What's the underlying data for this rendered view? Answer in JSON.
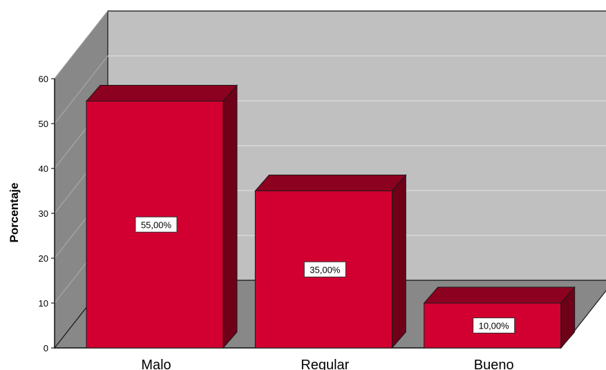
{
  "chart_data": {
    "type": "bar",
    "style": "3d",
    "categories": [
      "Malo",
      "Regular",
      "Bueno"
    ],
    "values": [
      55,
      35,
      10
    ],
    "data_labels": [
      "55,00%",
      "35,00%",
      "10,00%"
    ],
    "ylabel": "Porcentaje",
    "xlabel": "",
    "ylim": [
      0,
      60
    ],
    "yticks": [
      "0",
      "10",
      "20",
      "30",
      "40",
      "50",
      "60"
    ],
    "grid": true,
    "legend": "none",
    "colors": {
      "bar_front": "#d20031",
      "bar_top": "#8c0020",
      "bar_side": "#6e0018",
      "back_wall": "#c0c0c0",
      "side_wall": "#888888",
      "floor": "#888888",
      "edge": "#1a1a1a"
    }
  }
}
